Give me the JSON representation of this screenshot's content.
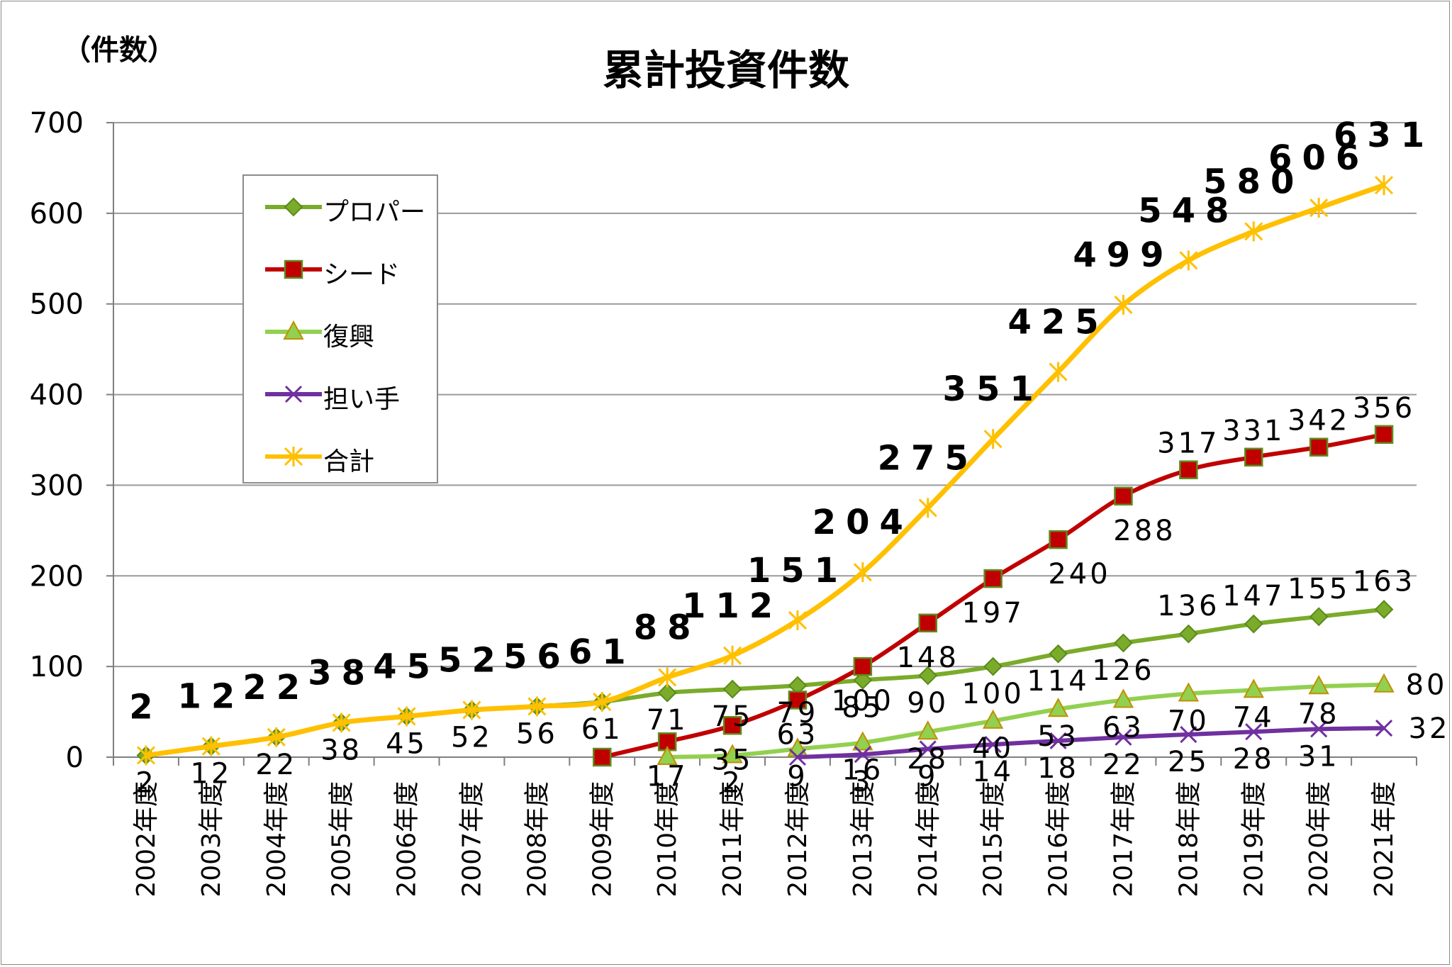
{
  "chart_data": {
    "type": "line",
    "title": "累計投資件数",
    "ylabel": "（件数）",
    "ylim": [
      0,
      700
    ],
    "yticks": [
      0,
      100,
      200,
      300,
      400,
      500,
      600,
      700
    ],
    "grid": true,
    "legend_position": "top-left",
    "categories": [
      "2002年度",
      "2003年度",
      "2004年度",
      "2005年度",
      "2006年度",
      "2007年度",
      "2008年度",
      "2009年度",
      "2010年度",
      "2011年度",
      "2012年度",
      "2013年度",
      "2014年度",
      "2015年度",
      "2016年度",
      "2017年度",
      "2018年度",
      "2019年度",
      "2020年度",
      "2021年度"
    ],
    "series": [
      {
        "name": "プロパー",
        "color": "#7aab2a",
        "marker": "diamond",
        "values": [
          2,
          12,
          22,
          38,
          45,
          52,
          56,
          61,
          71,
          75,
          79,
          85,
          90,
          100,
          114,
          126,
          136,
          147,
          155,
          163
        ],
        "labels": [
          2,
          12,
          22,
          38,
          45,
          52,
          56,
          61,
          71,
          75,
          79,
          85,
          90,
          100,
          114,
          126,
          136,
          147,
          155,
          163
        ]
      },
      {
        "name": "シード",
        "color": "#c00000",
        "marker": "square",
        "values": [
          null,
          null,
          null,
          null,
          null,
          null,
          null,
          0,
          17,
          35,
          63,
          100,
          148,
          197,
          240,
          288,
          317,
          331,
          342,
          356
        ],
        "labels": [
          null,
          null,
          null,
          null,
          null,
          null,
          null,
          null,
          17,
          35,
          63,
          100,
          148,
          197,
          240,
          288,
          317,
          331,
          342,
          356
        ]
      },
      {
        "name": "復興",
        "color": "#92d050",
        "marker": "triangle",
        "values": [
          null,
          null,
          null,
          null,
          null,
          null,
          null,
          null,
          0,
          2,
          9,
          16,
          28,
          40,
          53,
          63,
          70,
          74,
          78,
          80
        ],
        "labels": [
          null,
          null,
          null,
          null,
          null,
          null,
          null,
          null,
          null,
          2,
          9,
          16,
          28,
          40,
          53,
          63,
          70,
          74,
          78,
          80
        ]
      },
      {
        "name": "担い手",
        "color": "#7030a0",
        "marker": "x",
        "values": [
          null,
          null,
          null,
          null,
          null,
          null,
          null,
          null,
          null,
          null,
          0,
          3,
          9,
          14,
          18,
          22,
          25,
          28,
          31,
          32
        ],
        "labels": [
          null,
          null,
          null,
          null,
          null,
          null,
          null,
          null,
          null,
          null,
          null,
          3,
          9,
          14,
          18,
          22,
          25,
          28,
          31,
          32
        ]
      },
      {
        "name": "合計",
        "color": "#ffc000",
        "marker": "star",
        "values": [
          2,
          12,
          22,
          38,
          45,
          52,
          56,
          61,
          88,
          112,
          151,
          204,
          275,
          351,
          425,
          499,
          548,
          580,
          606,
          631
        ],
        "labels": [
          2,
          12,
          22,
          38,
          45,
          52,
          56,
          61,
          88,
          112,
          151,
          204,
          275,
          351,
          425,
          499,
          548,
          580,
          606,
          631
        ]
      }
    ]
  }
}
